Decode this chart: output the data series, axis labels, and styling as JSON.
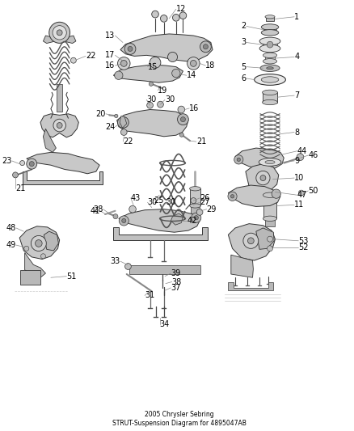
{
  "title": "2005 Chrysler Sebring\nSTRUT-Suspension Diagram for 4895047AB",
  "background_color": "#ffffff",
  "fig_width": 4.38,
  "fig_height": 5.33,
  "dpi": 100,
  "text_color": "#000000",
  "line_color": "#444444",
  "label_fontsize": 7.0,
  "callout_line_color": "#888888",
  "part_fill": "#d4d4d4",
  "part_stroke": "#333333"
}
